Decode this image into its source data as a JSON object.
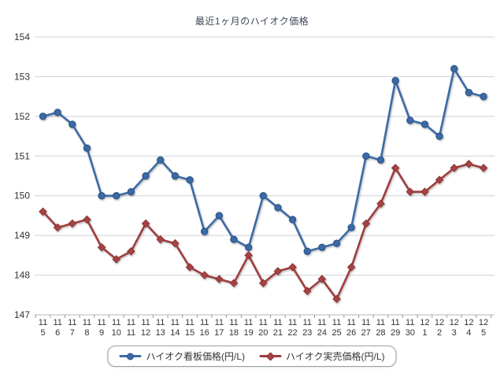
{
  "chart_data": {
    "type": "line",
    "title": "最近1ヶ月のハイオク価格",
    "categories": [
      "11/5",
      "11/6",
      "11/7",
      "11/8",
      "11/9",
      "11/10",
      "11/11",
      "11/12",
      "11/13",
      "11/14",
      "11/15",
      "11/16",
      "11/17",
      "11/18",
      "11/19",
      "11/20",
      "11/21",
      "11/22",
      "11/23",
      "11/24",
      "11/25",
      "11/26",
      "11/27",
      "11/28",
      "11/29",
      "11/30",
      "12/1",
      "12/2",
      "12/3",
      "12/4",
      "12/5"
    ],
    "series": [
      {
        "name": "ハイオク看板価格(円/L)",
        "marker": "circle",
        "color": "#3b6aa6",
        "marker_fill": "#3b6aa6",
        "marker_stroke": "#2d5488",
        "values": [
          152.0,
          152.1,
          151.8,
          151.2,
          150.0,
          150.0,
          150.1,
          150.5,
          150.9,
          150.5,
          150.4,
          149.1,
          149.5,
          148.9,
          148.7,
          150.0,
          149.7,
          149.4,
          148.6,
          148.7,
          148.8,
          149.2,
          151.0,
          150.9,
          152.9,
          151.9,
          151.8,
          151.5,
          153.2,
          152.6,
          152.5
        ]
      },
      {
        "name": "ハイオク実売価格(円/L)",
        "marker": "diamond",
        "color": "#9e3c3c",
        "marker_fill": "#a84343",
        "marker_stroke": "#8a3535",
        "values": [
          149.6,
          149.2,
          149.3,
          149.4,
          148.7,
          148.4,
          148.6,
          149.3,
          148.9,
          148.8,
          148.2,
          148.0,
          147.9,
          147.8,
          148.5,
          147.8,
          148.1,
          148.2,
          147.6,
          147.9,
          147.4,
          148.2,
          149.3,
          149.8,
          150.7,
          150.1,
          150.1,
          150.4,
          150.7,
          150.8,
          150.7
        ]
      }
    ],
    "ylim": [
      147,
      154
    ],
    "y_ticks": [
      147,
      148,
      149,
      150,
      151,
      152,
      153,
      154
    ],
    "grid": true,
    "legend_position": "bottom",
    "colors": {
      "gridline": "#cdd1d5",
      "axis_line": "#b3b7bb",
      "tick": "#999999",
      "tick_label": "#333333",
      "title": "#3d4757"
    }
  }
}
